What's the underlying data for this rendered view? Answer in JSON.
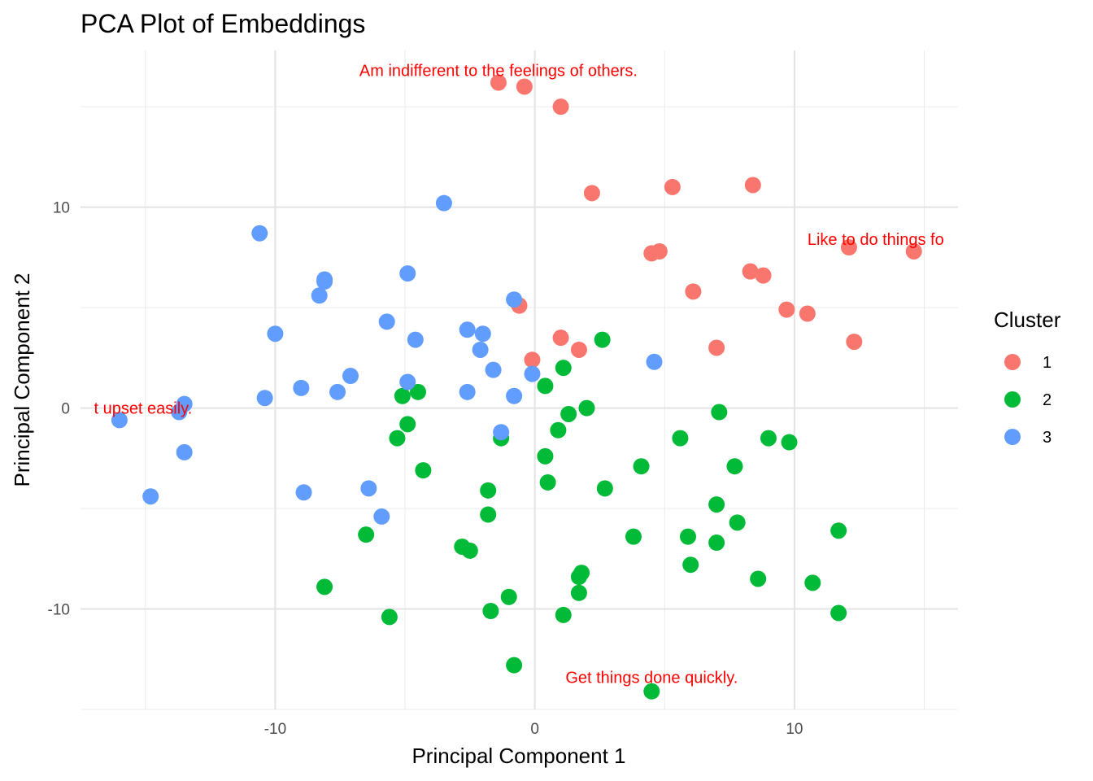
{
  "chart_data": {
    "type": "scatter",
    "title": "PCA Plot of Embeddings",
    "xlabel": "Principal Component 1",
    "ylabel": "Principal Component 2",
    "xlim": [
      -17.5,
      16.3
    ],
    "ylim": [
      -15.0,
      17.8
    ],
    "x_ticks": [
      -10,
      0,
      10
    ],
    "y_ticks": [
      10,
      0,
      -10
    ],
    "grid": true,
    "legend": {
      "title": "Cluster",
      "position": "right"
    },
    "colors": {
      "1": "#F8766D",
      "2": "#00BA38",
      "3": "#619CFF",
      "annotation": "#FF0000"
    },
    "series": [
      {
        "name": "1",
        "points": [
          [
            -1.4,
            16.2
          ],
          [
            -0.4,
            16.0
          ],
          [
            1.0,
            15.0
          ],
          [
            2.2,
            10.7
          ],
          [
            5.3,
            11.0
          ],
          [
            8.4,
            11.1
          ],
          [
            4.5,
            7.7
          ],
          [
            4.8,
            7.8
          ],
          [
            12.1,
            8.0
          ],
          [
            14.6,
            7.8
          ],
          [
            8.3,
            6.8
          ],
          [
            8.8,
            6.6
          ],
          [
            6.1,
            5.8
          ],
          [
            9.7,
            4.9
          ],
          [
            10.5,
            4.7
          ],
          [
            12.3,
            3.3
          ],
          [
            -0.6,
            5.1
          ],
          [
            1.0,
            3.5
          ],
          [
            1.7,
            2.9
          ],
          [
            7.0,
            3.0
          ],
          [
            -0.1,
            2.4
          ]
        ]
      },
      {
        "name": "2",
        "points": [
          [
            2.6,
            3.4
          ],
          [
            1.1,
            2.0
          ],
          [
            0.4,
            1.1
          ],
          [
            -5.1,
            0.6
          ],
          [
            -4.5,
            0.8
          ],
          [
            2.0,
            0.0
          ],
          [
            1.3,
            -0.3
          ],
          [
            7.1,
            -0.2
          ],
          [
            -4.9,
            -0.8
          ],
          [
            0.9,
            -1.1
          ],
          [
            -5.3,
            -1.5
          ],
          [
            -1.3,
            -1.5
          ],
          [
            5.6,
            -1.5
          ],
          [
            9.0,
            -1.5
          ],
          [
            9.8,
            -1.7
          ],
          [
            0.4,
            -2.4
          ],
          [
            4.1,
            -2.9
          ],
          [
            7.7,
            -2.9
          ],
          [
            -4.3,
            -3.1
          ],
          [
            0.5,
            -3.7
          ],
          [
            2.7,
            -4.0
          ],
          [
            -1.8,
            -4.1
          ],
          [
            7.0,
            -4.8
          ],
          [
            -1.8,
            -5.3
          ],
          [
            7.8,
            -5.7
          ],
          [
            11.7,
            -6.1
          ],
          [
            -6.5,
            -6.3
          ],
          [
            3.8,
            -6.4
          ],
          [
            5.9,
            -6.4
          ],
          [
            7.0,
            -6.7
          ],
          [
            -2.8,
            -6.9
          ],
          [
            -2.5,
            -7.1
          ],
          [
            6.0,
            -7.8
          ],
          [
            1.8,
            -8.2
          ],
          [
            1.7,
            -8.4
          ],
          [
            8.6,
            -8.5
          ],
          [
            10.7,
            -8.7
          ],
          [
            -8.1,
            -8.9
          ],
          [
            1.7,
            -9.2
          ],
          [
            -1.0,
            -9.4
          ],
          [
            -1.7,
            -10.1
          ],
          [
            1.1,
            -10.3
          ],
          [
            11.7,
            -10.2
          ],
          [
            -5.6,
            -10.4
          ],
          [
            -0.8,
            -12.8
          ],
          [
            4.5,
            -14.1
          ]
        ]
      },
      {
        "name": "3",
        "points": [
          [
            -3.5,
            10.2
          ],
          [
            -10.6,
            8.7
          ],
          [
            -4.9,
            6.7
          ],
          [
            -8.1,
            6.4
          ],
          [
            -8.1,
            6.3
          ],
          [
            -8.3,
            5.6
          ],
          [
            -0.8,
            5.4
          ],
          [
            -5.7,
            4.3
          ],
          [
            -10.0,
            3.7
          ],
          [
            -2.6,
            3.9
          ],
          [
            -2.0,
            3.7
          ],
          [
            -4.6,
            3.4
          ],
          [
            -2.1,
            2.9
          ],
          [
            4.6,
            2.3
          ],
          [
            -1.6,
            1.9
          ],
          [
            -0.1,
            1.7
          ],
          [
            -7.1,
            1.6
          ],
          [
            -4.9,
            1.3
          ],
          [
            -9.0,
            1.0
          ],
          [
            -7.6,
            0.8
          ],
          [
            -2.6,
            0.8
          ],
          [
            -0.8,
            0.6
          ],
          [
            -10.4,
            0.5
          ],
          [
            -13.5,
            0.2
          ],
          [
            -13.7,
            -0.2
          ],
          [
            -16.0,
            -0.6
          ],
          [
            -1.3,
            -1.2
          ],
          [
            -13.5,
            -2.2
          ],
          [
            -8.9,
            -4.2
          ],
          [
            -6.4,
            -4.0
          ],
          [
            -14.8,
            -4.4
          ],
          [
            -5.9,
            -5.4
          ]
        ]
      }
    ],
    "annotations": [
      {
        "text": "Am indifferent to the feelings of others.",
        "x": -1.4,
        "y": 16.8,
        "anchor": "middle"
      },
      {
        "text": "Like to do things fo",
        "x": 10.5,
        "y": 8.4,
        "anchor": "start"
      },
      {
        "text": "t upset easily.",
        "x": -13.2,
        "y": 0.0,
        "anchor": "end"
      },
      {
        "text": "Get things done quickly.",
        "x": 4.5,
        "y": -13.4,
        "anchor": "middle"
      }
    ]
  }
}
